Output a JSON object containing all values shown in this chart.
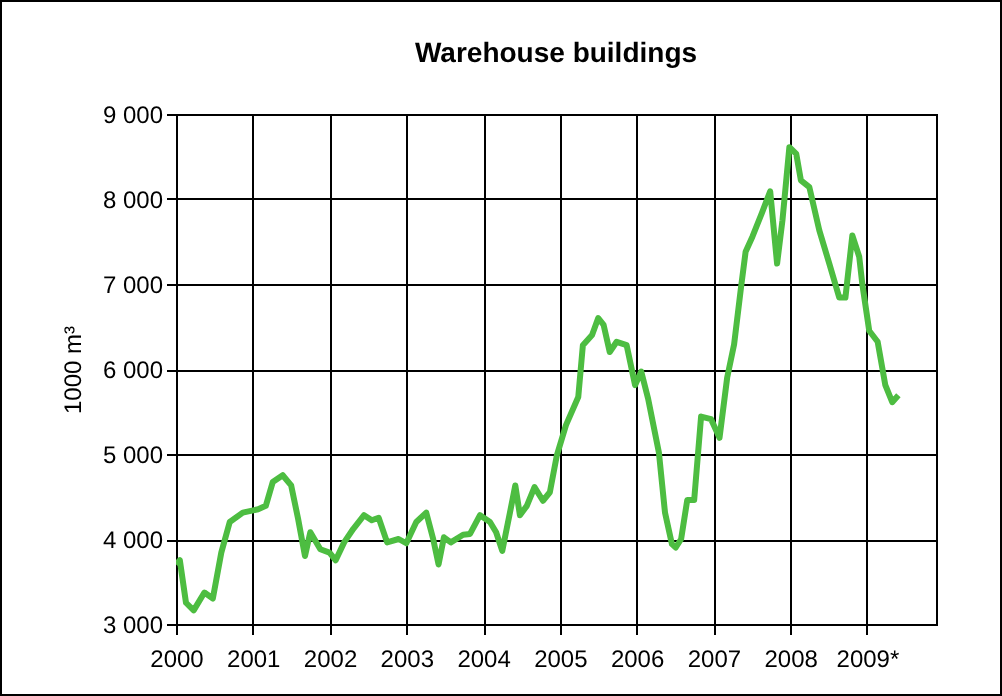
{
  "chart_data": {
    "type": "line",
    "title": "Warehouse buildings",
    "ylabel": "1000 m³",
    "x": [
      2000.0,
      2000.05,
      2000.13,
      2000.23,
      2000.37,
      2000.48,
      2000.59,
      2000.7,
      2000.87,
      2001.07,
      2001.17,
      2001.26,
      2001.39,
      2001.5,
      2001.59,
      2001.68,
      2001.75,
      2001.88,
      2002.0,
      2002.08,
      2002.19,
      2002.31,
      2002.45,
      2002.55,
      2002.64,
      2002.75,
      2002.9,
      2003.0,
      2003.13,
      2003.26,
      2003.35,
      2003.42,
      2003.49,
      2003.58,
      2003.74,
      2003.83,
      2003.96,
      2004.09,
      2004.17,
      2004.25,
      2004.35,
      2004.42,
      2004.48,
      2004.57,
      2004.67,
      2004.78,
      2004.87,
      2004.96,
      2005.08,
      2005.24,
      2005.3,
      2005.42,
      2005.5,
      2005.57,
      2005.65,
      2005.74,
      2005.87,
      2005.98,
      2006.06,
      2006.15,
      2006.29,
      2006.37,
      2006.46,
      2006.51,
      2006.58,
      2006.66,
      2006.75,
      2006.84,
      2006.97,
      2007.08,
      2007.18,
      2007.27,
      2007.36,
      2007.42,
      2007.51,
      2007.63,
      2007.74,
      2007.83,
      2007.9,
      2007.99,
      2008.08,
      2008.14,
      2008.25,
      2008.38,
      2008.51,
      2008.64,
      2008.72,
      2008.81,
      2008.9,
      2008.94,
      2009.03,
      2009.14,
      2009.24,
      2009.33,
      2009.41
    ],
    "series": [
      {
        "color": "#4dbd41",
        "values": [
          3700,
          3750,
          3250,
          3160,
          3370,
          3300,
          3840,
          4200,
          4310,
          4350,
          4390,
          4670,
          4750,
          4630,
          4240,
          3800,
          4080,
          3880,
          3840,
          3750,
          3960,
          4120,
          4280,
          4220,
          4250,
          3960,
          4000,
          3950,
          4200,
          4310,
          4000,
          3700,
          4020,
          3960,
          4050,
          4060,
          4280,
          4200,
          4080,
          3860,
          4310,
          4630,
          4280,
          4390,
          4610,
          4450,
          4550,
          4980,
          5340,
          5670,
          6280,
          6400,
          6600,
          6520,
          6200,
          6320,
          6280,
          5810,
          5970,
          5650,
          5020,
          4310,
          3940,
          3900,
          4000,
          4460,
          4460,
          5440,
          5410,
          5190,
          5900,
          6290,
          6960,
          7380,
          7560,
          7830,
          8090,
          7240,
          7750,
          8610,
          8530,
          8220,
          8140,
          7630,
          7240,
          6840,
          6840,
          7570,
          7320,
          7000,
          6450,
          6320,
          5810,
          5610,
          5690
        ]
      }
    ],
    "xlim": [
      2000,
      2009.9
    ],
    "xticks": [
      2000,
      2001,
      2002,
      2003,
      2004,
      2005,
      2006,
      2007,
      2008,
      {
        "value": 2009,
        "label": "2009*"
      }
    ],
    "ylim": [
      3000,
      9000
    ],
    "yticks": [
      {
        "value": 3000,
        "label": "3 000"
      },
      {
        "value": 4000,
        "label": "4 000"
      },
      {
        "value": 5000,
        "label": "5 000"
      },
      {
        "value": 6000,
        "label": "6 000"
      },
      {
        "value": 7000,
        "label": "7 000"
      },
      {
        "value": 8000,
        "label": "8 000"
      },
      {
        "value": 9000,
        "label": "9 000"
      }
    ],
    "grid": true,
    "legend": false,
    "marker": "none",
    "line_style": "solid"
  }
}
